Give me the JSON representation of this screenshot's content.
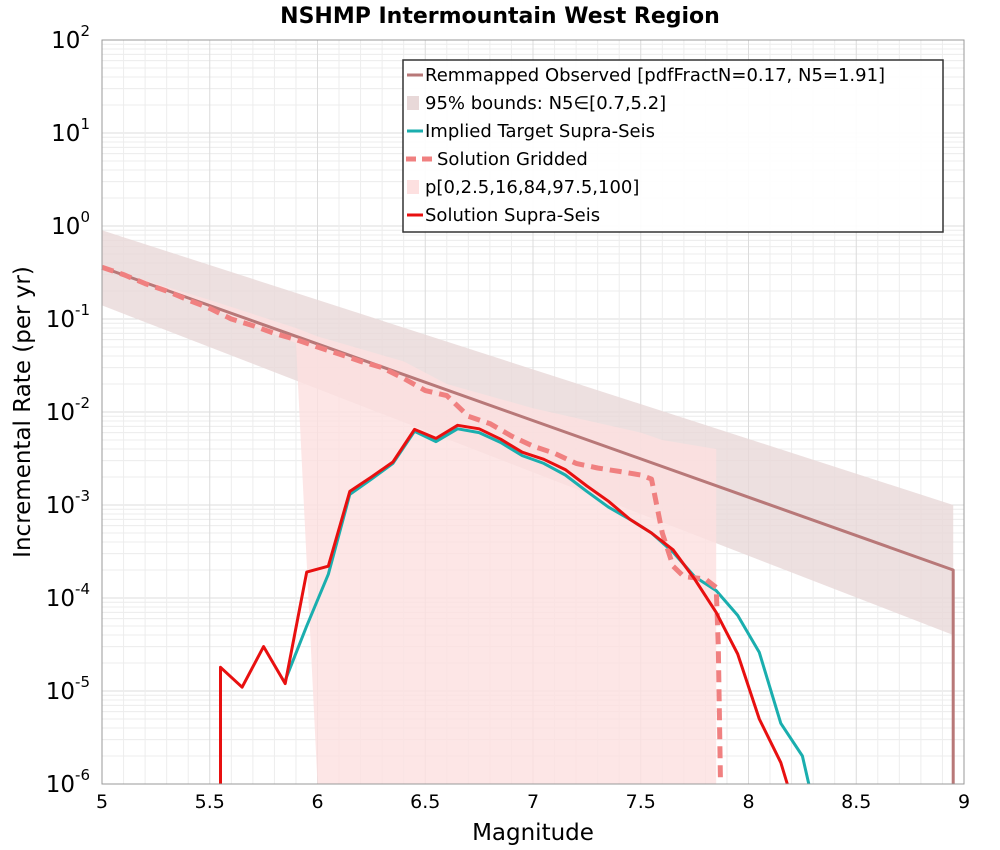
{
  "chart_data": {
    "type": "line",
    "title": "NSHMP Intermountain West Region",
    "xlabel": "Magnitude",
    "ylabel": "Incremental Rate (per yr)",
    "xlim": [
      5,
      9
    ],
    "ylim": [
      1e-06,
      100
    ],
    "yscale": "log",
    "grid": true,
    "legend_position": "top-right",
    "x_ticks": [
      "5",
      "5.5",
      "6",
      "6.5",
      "7",
      "7.5",
      "8",
      "8.5",
      "9"
    ],
    "y_ticks": [
      {
        "base": "10",
        "exp": "-6",
        "value": 1e-06
      },
      {
        "base": "10",
        "exp": "-5",
        "value": 1e-05
      },
      {
        "base": "10",
        "exp": "-4",
        "value": 0.0001
      },
      {
        "base": "10",
        "exp": "-3",
        "value": 0.001
      },
      {
        "base": "10",
        "exp": "-2",
        "value": 0.01
      },
      {
        "base": "10",
        "exp": "-1",
        "value": 0.1
      },
      {
        "base": "10",
        "exp": "0",
        "value": 1
      },
      {
        "base": "10",
        "exp": "1",
        "value": 10
      },
      {
        "base": "10",
        "exp": "2",
        "value": 100
      }
    ],
    "series": [
      {
        "name": "Remmapped Observed [pdfFractN=0.17, N5=1.91]",
        "kind": "line",
        "color": "#b87878",
        "x": [
          5.0,
          8.95,
          8.95
        ],
        "y": [
          0.36,
          0.0002,
          1e-06
        ]
      },
      {
        "name": "95% bounds: N5∈[0.7,5.2]",
        "kind": "band",
        "color": "#e8d8d8",
        "x": [
          5.0,
          8.95
        ],
        "lower": [
          0.14,
          4e-05
        ],
        "upper": [
          0.9,
          0.001
        ]
      },
      {
        "name": "Implied Target Supra-Seis",
        "kind": "line",
        "color": "#1aaeae",
        "x": [
          5.85,
          5.95,
          6.05,
          6.15,
          6.25,
          6.35,
          6.45,
          6.55,
          6.65,
          6.75,
          6.85,
          6.95,
          7.05,
          7.15,
          7.25,
          7.35,
          7.45,
          7.55,
          7.65,
          7.75,
          7.85,
          7.95,
          8.05,
          8.15,
          8.25,
          8.28
        ],
        "y": [
          1.3e-05,
          5e-05,
          0.00018,
          0.0013,
          0.0019,
          0.0028,
          0.0062,
          0.0048,
          0.0066,
          0.006,
          0.0047,
          0.0034,
          0.0028,
          0.0021,
          0.0014,
          0.00095,
          0.0007,
          0.0005,
          0.00031,
          0.00017,
          0.00012,
          6.5e-05,
          2.6e-05,
          4.5e-06,
          2e-06,
          1e-06
        ]
      },
      {
        "name": "Solution Gridded",
        "kind": "dashed",
        "color": "#f08080",
        "x": [
          5.0,
          5.1,
          5.2,
          5.3,
          5.4,
          5.5,
          5.6,
          5.7,
          5.8,
          5.9,
          6.0,
          6.1,
          6.2,
          6.3,
          6.4,
          6.5,
          6.6,
          6.7,
          6.8,
          6.9,
          7.0,
          7.1,
          7.2,
          7.3,
          7.4,
          7.5,
          7.55,
          7.6,
          7.65,
          7.7,
          7.8,
          7.85,
          7.86,
          7.87
        ],
        "y": [
          0.36,
          0.3,
          0.24,
          0.2,
          0.16,
          0.13,
          0.1,
          0.085,
          0.07,
          0.06,
          0.05,
          0.042,
          0.035,
          0.03,
          0.023,
          0.017,
          0.015,
          0.009,
          0.0075,
          0.0055,
          0.0043,
          0.0036,
          0.0028,
          0.0025,
          0.0023,
          0.0021,
          0.0019,
          0.0005,
          0.00022,
          0.00017,
          0.00016,
          0.00013,
          3e-05,
          1e-06
        ]
      },
      {
        "name": "p[0,2.5,16,84,97.5,100]",
        "kind": "band",
        "color": "#fde0e0",
        "x": [
          5.0,
          5.5,
          5.9,
          6.0,
          6.4,
          6.6,
          7.0,
          7.5,
          7.6,
          7.85
        ],
        "lower": [
          0.36,
          0.13,
          0.055,
          1e-06,
          1e-06,
          1e-06,
          1e-06,
          1e-06,
          1e-06,
          1e-06
        ],
        "upper": [
          0.36,
          0.16,
          0.08,
          0.065,
          0.035,
          0.02,
          0.011,
          0.006,
          0.005,
          0.004
        ]
      },
      {
        "name": "Solution Supra-Seis",
        "kind": "line",
        "color": "#e81010",
        "x": [
          5.55,
          5.55,
          5.65,
          5.75,
          5.85,
          5.95,
          6.05,
          6.15,
          6.25,
          6.35,
          6.45,
          6.55,
          6.65,
          6.75,
          6.85,
          6.95,
          7.05,
          7.15,
          7.25,
          7.35,
          7.45,
          7.55,
          7.65,
          7.75,
          7.85,
          7.95,
          8.05,
          8.15,
          8.18
        ],
        "y": [
          1e-06,
          1.8e-05,
          1.1e-05,
          3e-05,
          1.2e-05,
          0.00019,
          0.00022,
          0.0014,
          0.002,
          0.0029,
          0.0065,
          0.0052,
          0.0072,
          0.0066,
          0.0051,
          0.0037,
          0.0031,
          0.0024,
          0.0016,
          0.0011,
          0.0007,
          0.0005,
          0.00033,
          0.00016,
          7e-05,
          2.5e-05,
          5e-06,
          1.7e-06,
          1e-06
        ]
      }
    ]
  }
}
